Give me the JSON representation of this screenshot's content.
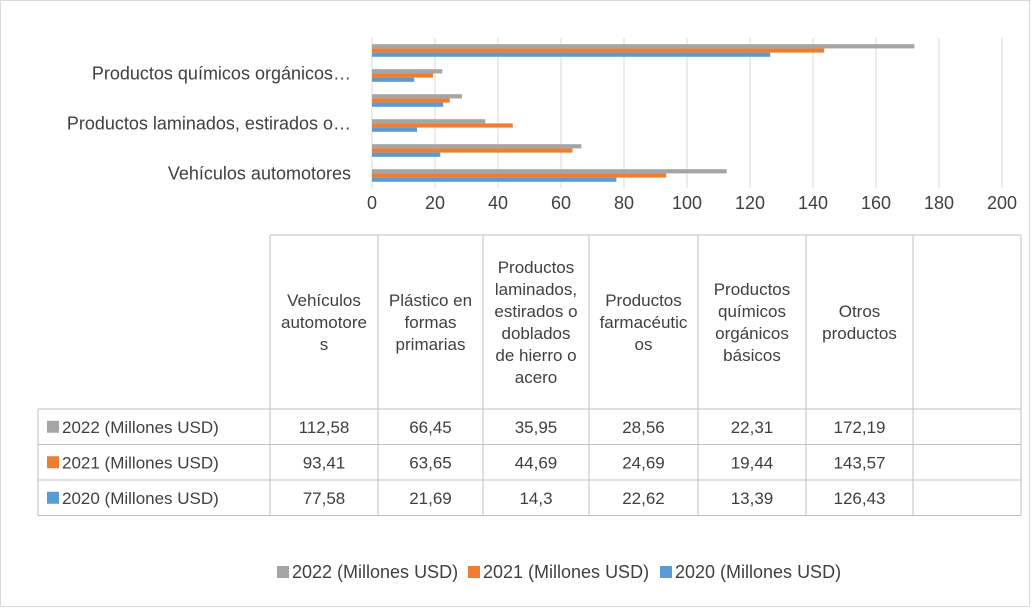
{
  "chart_data": {
    "type": "bar",
    "orientation": "horizontal",
    "categories": [
      "Vehículos automotores",
      "Plástico en formas primarias",
      "Productos laminados, estirados o doblados de hierro o acero",
      "Productos farmacéuticos",
      "Productos químicos orgánicos básicos",
      "Otros productos"
    ],
    "category_axis_labels": [
      "Vehículos automotores",
      "Productos laminados, estirados o…",
      "Productos químicos orgánicos…"
    ],
    "table_headers": [
      [
        "Vehículos",
        "automotore",
        "s"
      ],
      [
        "Plástico en",
        "formas",
        "primarias"
      ],
      [
        "Productos",
        "laminados,",
        "estirados o",
        "doblados",
        "de hierro o",
        "acero"
      ],
      [
        "Productos",
        "farmacéutic",
        "os"
      ],
      [
        "Productos",
        "químicos",
        "orgánicos",
        "básicos"
      ],
      [
        "Otros",
        "productos"
      ]
    ],
    "series": [
      {
        "name": "2022 (Millones USD)",
        "color": "#a5a5a5",
        "values": [
          112.58,
          66.45,
          35.95,
          28.56,
          22.31,
          172.19
        ],
        "display": [
          "112,58",
          "66,45",
          "35,95",
          "28,56",
          "22,31",
          "172,19"
        ]
      },
      {
        "name": "2021 (Millones USD)",
        "color": "#ed7d31",
        "values": [
          93.41,
          63.65,
          44.69,
          24.69,
          19.44,
          143.57
        ],
        "display": [
          "93,41",
          "63,65",
          "44,69",
          "24,69",
          "19,44",
          "143,57"
        ]
      },
      {
        "name": "2020 (Millones USD)",
        "color": "#5b9bd5",
        "values": [
          77.58,
          21.69,
          14.3,
          22.62,
          13.39,
          126.43
        ],
        "display": [
          "77,58",
          "21,69",
          "14,3",
          "22,62",
          "13,39",
          "126,43"
        ]
      }
    ],
    "xlim": [
      0,
      200
    ],
    "ticks": [
      "0",
      "20",
      "40",
      "60",
      "80",
      "100",
      "120",
      "140",
      "160",
      "180",
      "200"
    ],
    "grid": true,
    "legend_position": "bottom",
    "data_table": true
  }
}
